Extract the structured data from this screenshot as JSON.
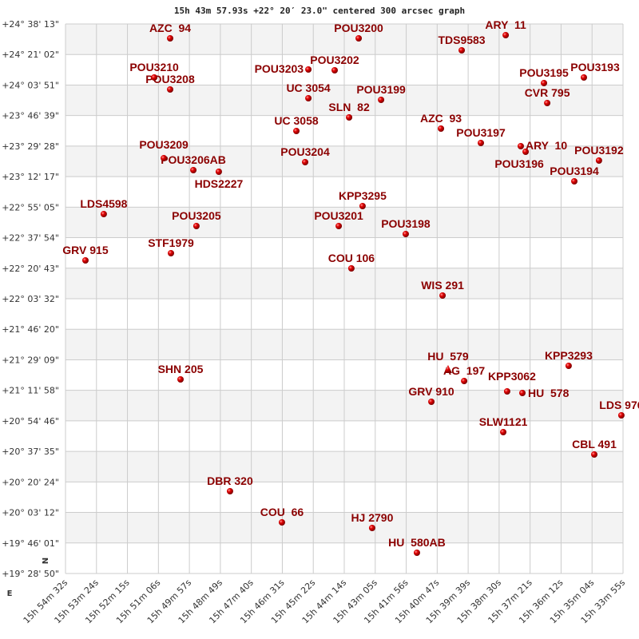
{
  "chart_data": {
    "type": "scatter",
    "title": "15h 43m 57.93s +22° 20′ 23.0\" centered 300 arcsec graph",
    "xlabel": "",
    "ylabel": "",
    "x_unit": "RA (hours)",
    "y_unit": "Dec (degrees)",
    "xlim": [
      15.90889,
      15.56528
    ],
    "ylim": [
      19.48056,
      24.63694
    ],
    "x_reversed": true,
    "grid": true,
    "banded_rows": true,
    "orientation_marks": {
      "north": "N",
      "east": "E"
    },
    "x_ticks": [
      "15h 54m 32s",
      "15h 53m 24s",
      "15h 52m 15s",
      "15h 51m 06s",
      "15h 49m 57s",
      "15h 48m 49s",
      "15h 47m 40s",
      "15h 46m 31s",
      "15h 45m 22s",
      "15h 44m 14s",
      "15h 43m 05s",
      "15h 41m 56s",
      "15h 40m 47s",
      "15h 39m 39s",
      "15h 38m 30s",
      "15h 37m 21s",
      "15h 36m 12s",
      "15h 35m 04s",
      "15h 33m 55s"
    ],
    "y_ticks": [
      "+24° 38' 13\"",
      "+24° 21' 02\"",
      "+24° 03' 51\"",
      "+23° 46' 39\"",
      "+23° 29' 28\"",
      "+23° 12' 17\"",
      "+22° 55' 05\"",
      "+22° 37' 54\"",
      "+22° 20' 43\"",
      "+22° 03' 32\"",
      "+21° 46' 20\"",
      "+21° 29' 09\"",
      "+21° 11' 58\"",
      "+20° 54' 46\"",
      "+20° 37' 35\"",
      "+20° 20' 24\"",
      "+20° 03' 12\"",
      "+19° 46' 01\"",
      "+19° 28' 50\""
    ],
    "colors": {
      "marker": "#dd0000",
      "label": "#8b0000",
      "grid": "#cccccc",
      "band": "#f3f3f3"
    },
    "points": [
      {
        "name": "AZC  94",
        "ra": 15.8444,
        "dec": 24.502
      },
      {
        "name": "POU3210",
        "ra": 15.8542,
        "dec": 24.1348
      },
      {
        "name": "POU3208",
        "ra": 15.8444,
        "dec": 24.0224
      },
      {
        "name": "POU3209",
        "ra": 15.8483,
        "dec": 23.3778
      },
      {
        "name": "POU3206AB",
        "ra": 15.8301,
        "dec": 23.2654
      },
      {
        "name": "HDS2227",
        "ra": 15.8144,
        "dec": 23.2504
      },
      {
        "name": "POU3200",
        "ra": 15.7282,
        "dec": 24.502
      },
      {
        "name": "POU3203",
        "ra": 15.7592,
        "dec": 24.2097
      },
      {
        "name": "POU3202",
        "ra": 15.743,
        "dec": 24.2022
      },
      {
        "name": "UC 3054",
        "ra": 15.7592,
        "dec": 23.9399
      },
      {
        "name": "UC 3058",
        "ra": 15.7666,
        "dec": 23.6326
      },
      {
        "name": "POU3204",
        "ra": 15.7612,
        "dec": 23.3403
      },
      {
        "name": "SLN  82",
        "ra": 15.7341,
        "dec": 23.7601
      },
      {
        "name": "POU3199",
        "ra": 15.7144,
        "dec": 23.9249
      },
      {
        "name": "TDS9583",
        "ra": 15.6647,
        "dec": 24.3896
      },
      {
        "name": "ARY  11",
        "ra": 15.6376,
        "dec": 24.532
      },
      {
        "name": "POU3195",
        "ra": 15.614,
        "dec": 24.0823
      },
      {
        "name": "POU3193",
        "ra": 15.5894,
        "dec": 24.1348
      },
      {
        "name": "CVR 795",
        "ra": 15.612,
        "dec": 23.8949
      },
      {
        "name": "AZC  93",
        "ra": 15.6775,
        "dec": 23.6551
      },
      {
        "name": "POU3197",
        "ra": 15.6529,
        "dec": 23.5202
      },
      {
        "name": "ARY  10",
        "ra": 15.6283,
        "dec": 23.4902
      },
      {
        "name": "POU3196",
        "ra": 15.6253,
        "dec": 23.4378
      },
      {
        "name": "POU3192",
        "ra": 15.5801,
        "dec": 23.3553
      },
      {
        "name": "POU3194",
        "ra": 15.5953,
        "dec": 23.1605
      },
      {
        "name": "LDS4598",
        "ra": 15.8853,
        "dec": 22.8532
      },
      {
        "name": "POU3205",
        "ra": 15.8282,
        "dec": 22.7408
      },
      {
        "name": "KPP3295",
        "ra": 15.7258,
        "dec": 22.9281
      },
      {
        "name": "POU3201",
        "ra": 15.7405,
        "dec": 22.7408
      },
      {
        "name": "POU3198",
        "ra": 15.6992,
        "dec": 22.6658
      },
      {
        "name": "GRV 915",
        "ra": 15.8966,
        "dec": 22.4185
      },
      {
        "name": "STF1979",
        "ra": 15.8439,
        "dec": 22.486
      },
      {
        "name": "COU 106",
        "ra": 15.7327,
        "dec": 22.3436
      },
      {
        "name": "WIS 291",
        "ra": 15.6765,
        "dec": 22.0887
      },
      {
        "name": "HU  579",
        "ra": 15.6731,
        "dec": 21.3918,
        "marker": "triangle"
      },
      {
        "name": "AG  197",
        "ra": 15.6632,
        "dec": 21.2868
      },
      {
        "name": "GRV 910",
        "ra": 15.6834,
        "dec": 21.092
      },
      {
        "name": "KPP3062",
        "ra": 15.6367,
        "dec": 21.1894
      },
      {
        "name": "HU  578",
        "ra": 15.6273,
        "dec": 21.1744
      },
      {
        "name": "KPP3293",
        "ra": 15.5988,
        "dec": 21.4292
      },
      {
        "name": "SHN 205",
        "ra": 15.838,
        "dec": 21.3018
      },
      {
        "name": "LDS 976",
        "ra": 15.5663,
        "dec": 20.9646
      },
      {
        "name": "SLW1121",
        "ra": 15.6391,
        "dec": 20.8072
      },
      {
        "name": "CBL 491",
        "ra": 15.583,
        "dec": 20.5973
      },
      {
        "name": "DBR 320",
        "ra": 15.8075,
        "dec": 20.2526
      },
      {
        "name": "COU  66",
        "ra": 15.7755,
        "dec": 19.9603
      },
      {
        "name": "HJ 2790",
        "ra": 15.7199,
        "dec": 19.9078
      },
      {
        "name": "HU  580AB",
        "ra": 15.6923,
        "dec": 19.6755
      }
    ]
  }
}
